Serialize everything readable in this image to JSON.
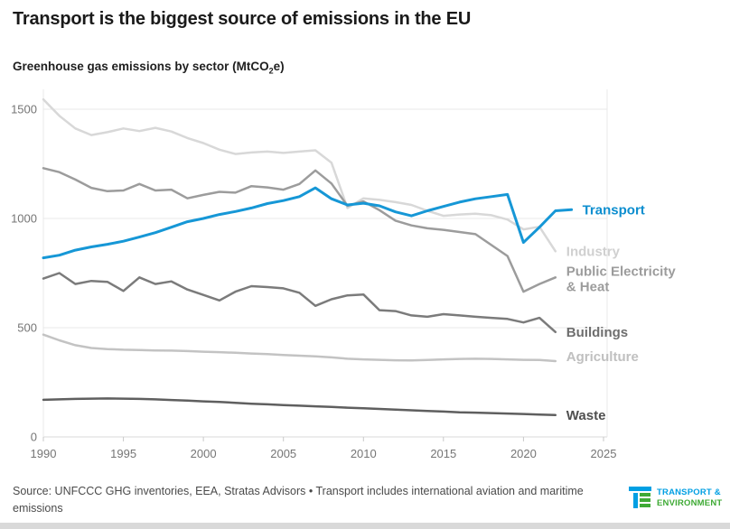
{
  "title": "Transport is the biggest source of emissions in the EU",
  "subtitle": {
    "before_sub": "Greenhouse gas emissions by sector (MtCO",
    "sub": "2",
    "after_sub": "e)"
  },
  "source_text": "Source: UNFCCC GHG inventories, EEA, Stratas Advisors • Transport includes international aviation and maritime emissions",
  "logo": {
    "line1": "TRANSPORT &",
    "line2": "ENVIRONMENT",
    "blue": "#009fe3",
    "green": "#3faa35"
  },
  "colors": {
    "grid": "#e8e8e8",
    "axis_zero": "#d9d9d9",
    "tick": "#c9c9c9",
    "axis_label": "#757575",
    "accent_blue": "#1095d3"
  },
  "chart_data": {
    "type": "line",
    "title": "Greenhouse gas emissions by sector (MtCO2e)",
    "xlabel": "",
    "ylabel": "MtCO2e",
    "start_year": 1990,
    "xlim": [
      1990,
      2025
    ],
    "ylim": [
      0,
      1620
    ],
    "x_ticks": [
      1990,
      1995,
      2000,
      2005,
      2010,
      2015,
      2020,
      2025
    ],
    "y_ticks": [
      0,
      500,
      1000,
      1500
    ],
    "grid": "horizontal",
    "legend_position": "right-of-line-ends",
    "series": [
      {
        "name": "Industry",
        "color": "#d8d8d8",
        "label_color": "#d0d0d0",
        "width": 2.5,
        "label_lines": [
          "Industry"
        ],
        "label_dy": 5,
        "values": [
          1545,
          1470,
          1412,
          1382,
          1395,
          1412,
          1400,
          1415,
          1398,
          1368,
          1345,
          1315,
          1295,
          1302,
          1306,
          1300,
          1306,
          1312,
          1255,
          1048,
          1092,
          1085,
          1075,
          1062,
          1035,
          1012,
          1018,
          1022,
          1015,
          995,
          950,
          962,
          850
        ]
      },
      {
        "name": "Public Electricity & Heat",
        "color": "#9c9c9c",
        "label_color": "#9c9c9c",
        "width": 2.5,
        "label_lines": [
          "Public Electricity",
          "& Heat"
        ],
        "label_dy": -2,
        "values": [
          1230,
          1212,
          1178,
          1140,
          1125,
          1128,
          1158,
          1128,
          1132,
          1092,
          1108,
          1122,
          1118,
          1148,
          1142,
          1132,
          1158,
          1220,
          1160,
          1058,
          1078,
          1038,
          990,
          968,
          955,
          948,
          938,
          928,
          878,
          828,
          665,
          700,
          730
        ]
      },
      {
        "name": "Agriculture",
        "color": "#c3c3c3",
        "label_color": "#c0c0c0",
        "width": 2.5,
        "label_lines": [
          "Agriculture"
        ],
        "label_dy": 0,
        "values": [
          468,
          442,
          420,
          407,
          402,
          399,
          398,
          396,
          395,
          393,
          390,
          388,
          385,
          382,
          379,
          375,
          372,
          369,
          364,
          358,
          355,
          353,
          351,
          350,
          352,
          355,
          357,
          358,
          357,
          355,
          353,
          352,
          347
        ]
      },
      {
        "name": "Waste",
        "color": "#5f5f5f",
        "label_color": "#4f4f4f",
        "width": 2.5,
        "label_lines": [
          "Waste"
        ],
        "label_dy": 5,
        "values": [
          170,
          172,
          174,
          175,
          176,
          175,
          174,
          172,
          169,
          166,
          163,
          160,
          156,
          152,
          149,
          146,
          143,
          140,
          137,
          134,
          131,
          128,
          125,
          122,
          119,
          116,
          113,
          111,
          109,
          107,
          105,
          102,
          100
        ]
      },
      {
        "name": "Buildings",
        "color": "#7b7b7b",
        "label_color": "#6e6e6e",
        "width": 2.5,
        "label_lines": [
          "Buildings"
        ],
        "label_dy": 5,
        "values": [
          725,
          750,
          700,
          714,
          710,
          668,
          730,
          700,
          712,
          675,
          650,
          625,
          665,
          690,
          686,
          680,
          660,
          600,
          630,
          648,
          652,
          580,
          576,
          556,
          550,
          562,
          556,
          550,
          545,
          540,
          524,
          545,
          480
        ]
      },
      {
        "name": "Transport",
        "color": "#1697d6",
        "label_color": "#0d8ecf",
        "width": 3,
        "label_lines": [
          "Transport"
        ],
        "label_dy": 5,
        "values": [
          820,
          832,
          855,
          870,
          882,
          896,
          915,
          935,
          960,
          985,
          1000,
          1018,
          1032,
          1048,
          1068,
          1082,
          1100,
          1140,
          1090,
          1062,
          1070,
          1058,
          1030,
          1012,
          1035,
          1055,
          1075,
          1090,
          1100,
          1110,
          890,
          960,
          1035,
          1040
        ]
      }
    ]
  }
}
